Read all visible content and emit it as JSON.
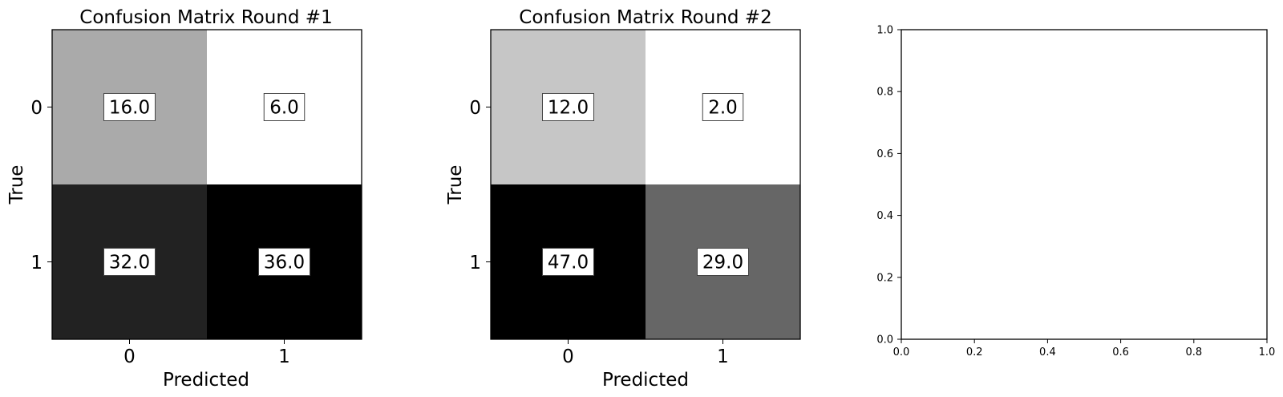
{
  "chart_data": [
    {
      "type": "heatmap",
      "title": "Confusion Matrix Round #1",
      "xlabel": "Predicted",
      "ylabel": "True",
      "x_categories": [
        "0",
        "1"
      ],
      "y_categories": [
        "0",
        "1"
      ],
      "values": [
        [
          16.0,
          6.0
        ],
        [
          32.0,
          36.0
        ]
      ],
      "cell_labels": [
        [
          "16.0",
          "6.0"
        ],
        [
          "32.0",
          "36.0"
        ]
      ],
      "colormap": "gray_r",
      "grid": false
    },
    {
      "type": "heatmap",
      "title": "Confusion Matrix Round #2",
      "xlabel": "Predicted",
      "ylabel": "True",
      "x_categories": [
        "0",
        "1"
      ],
      "y_categories": [
        "0",
        "1"
      ],
      "values": [
        [
          12.0,
          2.0
        ],
        [
          47.0,
          29.0
        ]
      ],
      "cell_labels": [
        [
          "12.0",
          "2.0"
        ],
        [
          "47.0",
          "29.0"
        ]
      ],
      "colormap": "gray_r",
      "grid": false
    },
    {
      "type": "scatter",
      "title": "",
      "xlabel": "",
      "ylabel": "",
      "series": [],
      "xlim": [
        0.0,
        1.0
      ],
      "ylim": [
        0.0,
        1.0
      ],
      "x_ticks": [
        "0.0",
        "0.2",
        "0.4",
        "0.6",
        "0.8",
        "1.0"
      ],
      "y_ticks": [
        "0.0",
        "0.2",
        "0.4",
        "0.6",
        "0.8",
        "1.0"
      ],
      "grid": false
    }
  ]
}
